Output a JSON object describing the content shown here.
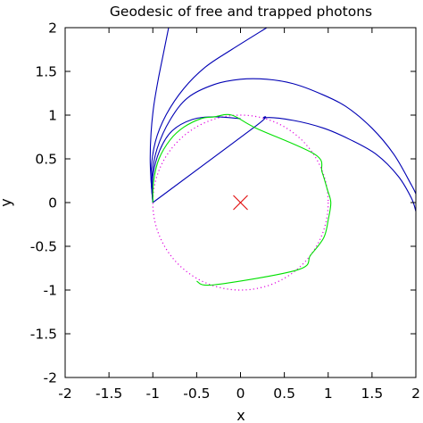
{
  "chart_data": {
    "type": "line",
    "title": "Geodesic of free and trapped photons",
    "xlabel": "x",
    "ylabel": "y",
    "xlim": [
      -2,
      2
    ],
    "ylim": [
      -2,
      2
    ],
    "xticks": [
      -2,
      -1.5,
      -1,
      -0.5,
      0,
      0.5,
      1,
      1.5,
      2
    ],
    "yticks": [
      -2,
      -1.5,
      -1,
      -0.5,
      0,
      0.5,
      1,
      1.5,
      2
    ],
    "xtick_labels": [
      "-2",
      "-1.5",
      "-1",
      "-0.5",
      "0",
      "0.5",
      "1",
      "1.5",
      "2"
    ],
    "ytick_labels": [
      "-2",
      "-1.5",
      "-1",
      "-0.5",
      "0",
      "0.5",
      "1",
      "1.5",
      "2"
    ],
    "grid": false,
    "colors": {
      "free": "#0000b4",
      "trapped": "#00e000",
      "circle": "#e000e0",
      "marker": "#e00000"
    },
    "marker": {
      "x": 0,
      "y": 0,
      "symbol": "x"
    },
    "circle": {
      "cx": 0,
      "cy": 0,
      "r": 1,
      "style": "dotted"
    },
    "series": [
      {
        "group": "free",
        "points": [
          [
            -1.0,
            0.0
          ],
          [
            -1.02,
            0.25
          ],
          [
            -1.03,
            0.5
          ],
          [
            -1.02,
            0.8
          ],
          [
            -0.99,
            1.1
          ],
          [
            -0.94,
            1.4
          ],
          [
            -0.88,
            1.7
          ],
          [
            -0.82,
            2.0
          ]
        ]
      },
      {
        "group": "free",
        "points": [
          [
            -1.0,
            0.0
          ],
          [
            -1.02,
            0.35
          ],
          [
            -0.97,
            0.7
          ],
          [
            -0.85,
            1.0
          ],
          [
            -0.65,
            1.3
          ],
          [
            -0.4,
            1.55
          ],
          [
            -0.1,
            1.75
          ],
          [
            0.3,
            2.0
          ]
        ]
      },
      {
        "group": "free",
        "points": [
          [
            -1.0,
            0.0
          ],
          [
            -1.01,
            0.3
          ],
          [
            -0.95,
            0.62
          ],
          [
            -0.8,
            0.95
          ],
          [
            -0.6,
            1.2
          ],
          [
            -0.3,
            1.35
          ],
          [
            0.0,
            1.41
          ],
          [
            0.3,
            1.41
          ],
          [
            0.6,
            1.36
          ],
          [
            0.9,
            1.25
          ],
          [
            1.2,
            1.1
          ],
          [
            1.5,
            0.85
          ],
          [
            1.75,
            0.55
          ],
          [
            1.95,
            0.2
          ],
          [
            2.0,
            0.1
          ]
        ]
      },
      {
        "group": "free",
        "points": [
          [
            -1.0,
            0.0
          ],
          [
            -1.0,
            0.3
          ],
          [
            -0.92,
            0.6
          ],
          [
            -0.78,
            0.82
          ],
          [
            -0.55,
            0.95
          ],
          [
            -0.3,
            0.98
          ],
          [
            0.0,
            0.96
          ]
        ]
      },
      {
        "group": "free",
        "points": [
          [
            -1.0,
            0.0
          ],
          [
            0.18,
            0.88
          ],
          [
            0.28,
            0.97
          ],
          [
            0.6,
            0.94
          ],
          [
            0.95,
            0.85
          ],
          [
            1.25,
            0.72
          ],
          [
            1.55,
            0.55
          ],
          [
            1.8,
            0.3
          ],
          [
            1.95,
            0.05
          ],
          [
            2.0,
            -0.1
          ]
        ]
      },
      {
        "group": "trapped",
        "points": [
          [
            -1.0,
            0.0
          ],
          [
            -0.99,
            0.25
          ],
          [
            -0.93,
            0.5
          ],
          [
            -0.8,
            0.72
          ],
          [
            -0.65,
            0.86
          ],
          [
            -0.45,
            0.96
          ],
          [
            -0.3,
            0.98
          ],
          [
            -0.1,
            1.0
          ],
          [
            0.18,
            0.85
          ],
          [
            0.85,
            0.55
          ],
          [
            0.93,
            0.35
          ],
          [
            0.99,
            0.15
          ],
          [
            1.03,
            0.0
          ],
          [
            1.0,
            -0.2
          ],
          [
            0.95,
            -0.4
          ],
          [
            0.8,
            -0.6
          ],
          [
            0.65,
            -0.77
          ],
          [
            -0.3,
            -0.94
          ],
          [
            -0.5,
            -0.9
          ]
        ]
      }
    ]
  }
}
